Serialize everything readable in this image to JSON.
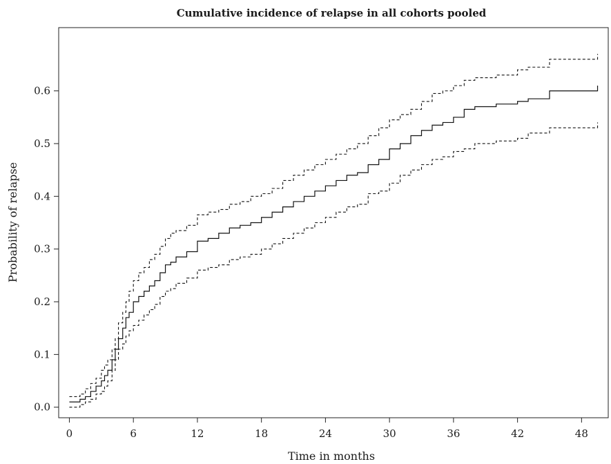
{
  "chart_data": {
    "type": "line",
    "title": "Cumulative incidence of relapse in all cohorts pooled",
    "xlabel": "Time in months",
    "ylabel": "Probability of relapse",
    "xlim": [
      -1,
      50.5
    ],
    "ylim": [
      -0.02,
      0.72
    ],
    "x_ticks": [
      0,
      6,
      12,
      18,
      24,
      30,
      36,
      42,
      48
    ],
    "y_ticks": [
      0.0,
      0.1,
      0.2,
      0.3,
      0.4,
      0.5,
      0.6
    ],
    "x_tick_labels": [
      "0",
      "6",
      "12",
      "18",
      "24",
      "30",
      "36",
      "42",
      "48"
    ],
    "y_tick_labels": [
      "0.0",
      "0.1",
      "0.2",
      "0.3",
      "0.4",
      "0.5",
      "0.6"
    ],
    "grid": false,
    "series": [
      {
        "style": "solid",
        "x": [
          0,
          1,
          1.5,
          2,
          2.5,
          3,
          3.3,
          3.6,
          4,
          4.3,
          4.6,
          5,
          5.3,
          5.6,
          6,
          6.5,
          7,
          7.5,
          8,
          8.5,
          9,
          9.5,
          10,
          11,
          12,
          13,
          14,
          15,
          16,
          17,
          18,
          19,
          20,
          21,
          22,
          23,
          24,
          25,
          26,
          27,
          28,
          29,
          30,
          31,
          32,
          33,
          34,
          35,
          36,
          37,
          38,
          40,
          42,
          43,
          45,
          47,
          49.5
        ],
        "y": [
          0.01,
          0.015,
          0.02,
          0.03,
          0.04,
          0.05,
          0.06,
          0.07,
          0.09,
          0.11,
          0.13,
          0.15,
          0.17,
          0.18,
          0.2,
          0.21,
          0.22,
          0.23,
          0.24,
          0.255,
          0.27,
          0.275,
          0.285,
          0.295,
          0.315,
          0.32,
          0.33,
          0.34,
          0.345,
          0.35,
          0.36,
          0.37,
          0.38,
          0.39,
          0.4,
          0.41,
          0.42,
          0.43,
          0.44,
          0.445,
          0.46,
          0.47,
          0.49,
          0.5,
          0.515,
          0.525,
          0.535,
          0.54,
          0.55,
          0.565,
          0.57,
          0.575,
          0.58,
          0.585,
          0.6,
          0.6,
          0.61
        ]
      },
      {
        "style": "dashed",
        "x": [
          0,
          1,
          1.5,
          2,
          2.5,
          3,
          3.3,
          3.6,
          4,
          4.3,
          4.6,
          5,
          5.3,
          5.6,
          6,
          6.5,
          7,
          7.5,
          8,
          8.5,
          9,
          9.5,
          10,
          11,
          12,
          13,
          14,
          15,
          16,
          17,
          18,
          19,
          20,
          21,
          22,
          23,
          24,
          25,
          26,
          27,
          28,
          29,
          30,
          31,
          32,
          33,
          34,
          35,
          36,
          37,
          38,
          40,
          42,
          43,
          45,
          47,
          49.5
        ],
        "y": [
          0.02,
          0.025,
          0.035,
          0.045,
          0.055,
          0.07,
          0.08,
          0.09,
          0.11,
          0.13,
          0.16,
          0.18,
          0.2,
          0.22,
          0.24,
          0.255,
          0.265,
          0.28,
          0.29,
          0.305,
          0.32,
          0.33,
          0.335,
          0.345,
          0.365,
          0.37,
          0.375,
          0.385,
          0.39,
          0.4,
          0.405,
          0.415,
          0.43,
          0.44,
          0.45,
          0.46,
          0.47,
          0.48,
          0.49,
          0.5,
          0.515,
          0.53,
          0.545,
          0.555,
          0.565,
          0.58,
          0.595,
          0.6,
          0.61,
          0.62,
          0.625,
          0.63,
          0.64,
          0.645,
          0.66,
          0.66,
          0.67
        ]
      },
      {
        "style": "dashed",
        "x": [
          0,
          1,
          1.5,
          2,
          2.5,
          3,
          3.3,
          3.6,
          4,
          4.3,
          4.6,
          5,
          5.3,
          5.6,
          6,
          6.5,
          7,
          7.5,
          8,
          8.5,
          9,
          9.5,
          10,
          11,
          12,
          13,
          14,
          15,
          16,
          17,
          18,
          19,
          20,
          21,
          22,
          23,
          24,
          25,
          26,
          27,
          28,
          29,
          30,
          31,
          32,
          33,
          34,
          35,
          36,
          37,
          38,
          40,
          42,
          43,
          45,
          47,
          49.5
        ],
        "y": [
          0.0,
          0.005,
          0.01,
          0.015,
          0.025,
          0.03,
          0.04,
          0.05,
          0.07,
          0.09,
          0.11,
          0.12,
          0.135,
          0.145,
          0.155,
          0.165,
          0.175,
          0.185,
          0.195,
          0.21,
          0.22,
          0.225,
          0.235,
          0.245,
          0.26,
          0.265,
          0.27,
          0.28,
          0.285,
          0.29,
          0.3,
          0.31,
          0.32,
          0.33,
          0.34,
          0.35,
          0.36,
          0.37,
          0.38,
          0.385,
          0.405,
          0.41,
          0.425,
          0.44,
          0.45,
          0.46,
          0.47,
          0.475,
          0.485,
          0.49,
          0.5,
          0.505,
          0.51,
          0.52,
          0.53,
          0.53,
          0.54
        ]
      }
    ]
  }
}
